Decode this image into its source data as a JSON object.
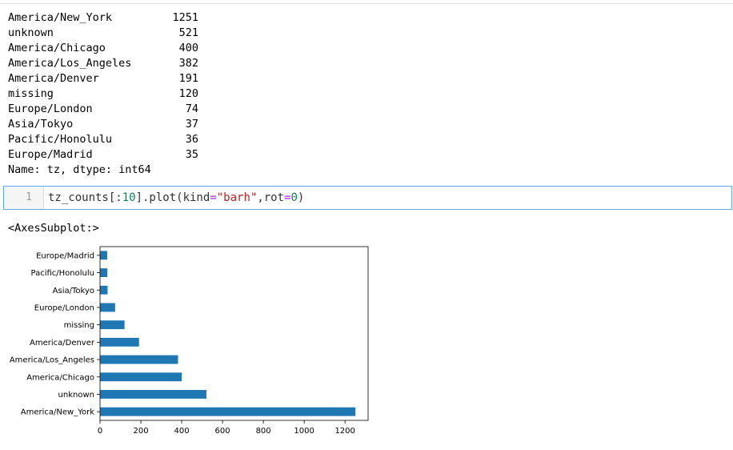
{
  "output": {
    "rows": [
      {
        "key": "America/New_York",
        "value": "1251"
      },
      {
        "key": "unknown",
        "value": "521"
      },
      {
        "key": "America/Chicago",
        "value": "400"
      },
      {
        "key": "America/Los_Angeles",
        "value": "382"
      },
      {
        "key": "America/Denver",
        "value": "191"
      },
      {
        "key": "missing",
        "value": "120"
      },
      {
        "key": "Europe/London",
        "value": "74"
      },
      {
        "key": "Asia/Tokyo",
        "value": "37"
      },
      {
        "key": "Pacific/Honolulu",
        "value": "36"
      },
      {
        "key": "Europe/Madrid",
        "value": "35"
      }
    ],
    "footer": "Name: tz, dtype: int64"
  },
  "cell": {
    "line_number": "1",
    "code_parts": {
      "a": "tz_counts[:",
      "b": "10",
      "c": "].plot(kind",
      "d": "=",
      "e": "\"barh\"",
      "f": ",rot",
      "g": "=",
      "h": "0",
      "i": ")"
    }
  },
  "exec_result": "<AxesSubplot:>",
  "chart_data": {
    "type": "bar",
    "orientation": "horizontal",
    "categories": [
      "America/New_York",
      "unknown",
      "America/Chicago",
      "America/Los_Angeles",
      "America/Denver",
      "missing",
      "Europe/London",
      "Asia/Tokyo",
      "Pacific/Honolulu",
      "Europe/Madrid"
    ],
    "values": [
      1251,
      521,
      400,
      382,
      191,
      120,
      74,
      37,
      36,
      35
    ],
    "xticks": [
      "0",
      "200",
      "400",
      "600",
      "800",
      "1000",
      "1200"
    ],
    "xlim": [
      0,
      1313
    ],
    "bar_color": "#1f77b4",
    "grid": false,
    "title": "",
    "xlabel": "",
    "ylabel": ""
  }
}
